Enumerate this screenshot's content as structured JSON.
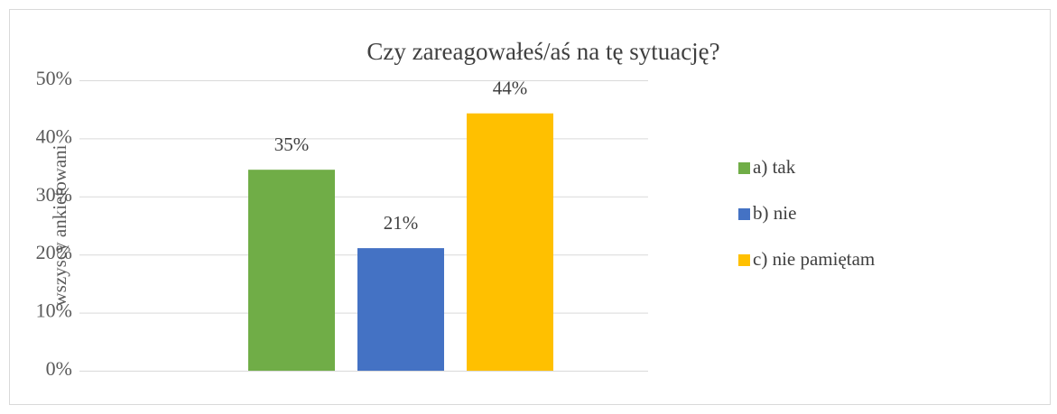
{
  "chart_data": {
    "type": "bar",
    "title": "Czy zareagowałeś/aś na tę sytuację?",
    "ylabel": "wszyscy ankietowani",
    "categories": [
      null
    ],
    "series": [
      {
        "name": "a) tak",
        "color": "#70ad47",
        "values": [
          34.6
        ],
        "value_labels": [
          "35%"
        ]
      },
      {
        "name": "b) nie",
        "color": "#4472c4",
        "values": [
          21.1
        ],
        "value_labels": [
          "21%"
        ]
      },
      {
        "name": "c) nie pamiętam",
        "color": "#ffc000",
        "values": [
          44.3
        ],
        "value_labels": [
          "44%"
        ]
      }
    ],
    "ylim": [
      0,
      50
    ],
    "yticks": [
      {
        "value": 0,
        "label": "0%"
      },
      {
        "value": 10,
        "label": "10%"
      },
      {
        "value": 20,
        "label": "20%"
      },
      {
        "value": 30,
        "label": "30%"
      },
      {
        "value": 40,
        "label": "40%"
      },
      {
        "value": 50,
        "label": "50%"
      }
    ],
    "grid": true,
    "legend": "right"
  }
}
